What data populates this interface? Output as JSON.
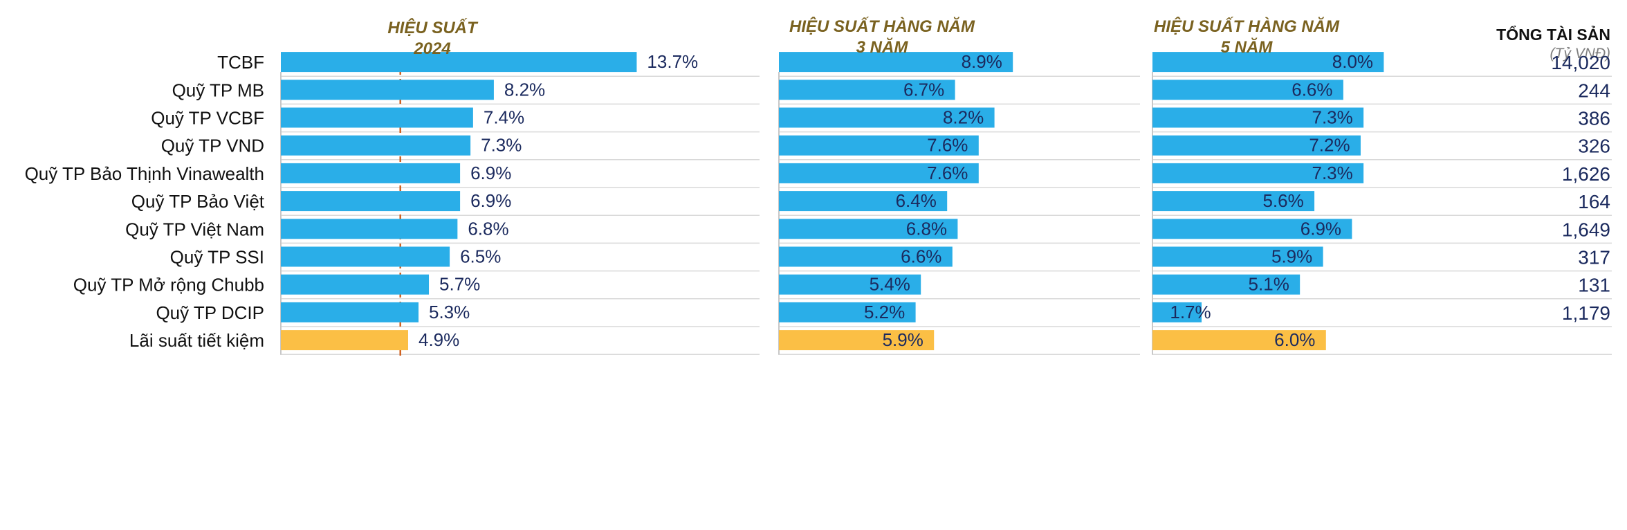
{
  "colors": {
    "bar": "#2aaee8",
    "bar_highlight": "#fbbf45",
    "header_text": "#7a6220",
    "value_text": "#1b2a5e",
    "aum_header": "#111111",
    "aum_sub": "#7f7f7f",
    "row_line": "#d9d9d9",
    "axis_line": "#c8c8c8",
    "reference_line": "#d0611f"
  },
  "headers": {
    "col1": [
      "HIỆU SUẤT",
      "2024"
    ],
    "col2": [
      "HIỆU SUẤT HÀNG NĂM",
      "3 NĂM"
    ],
    "col3": [
      "HIỆU SUẤT HÀNG NĂM",
      "5 NĂM"
    ],
    "col4_title": "TỔNG TÀI SẢN",
    "col4_unit": "(Tỷ VNĐ)"
  },
  "chart_data": [
    {
      "type": "bar",
      "orientation": "horizontal",
      "title": "HIỆU SUẤT 2024",
      "categories": [
        "TCBF",
        "Quỹ TP MB",
        "Quỹ TP VCBF",
        "Quỹ TP VND",
        "Quỹ TP Bảo Thịnh Vinawealth",
        "Quỹ TP Bảo Việt",
        "Quỹ TP Việt Nam",
        "Quỹ TP SSI",
        "Quỹ TP Mở rộng Chubb",
        "Quỹ TP DCIP",
        "Lãi suất tiết kiệm"
      ],
      "values": [
        13.7,
        8.2,
        7.4,
        7.3,
        6.9,
        6.9,
        6.8,
        6.5,
        5.7,
        5.3,
        4.9
      ],
      "labels": [
        "13.7%",
        "8.2%",
        "7.4%",
        "7.3%",
        "6.9%",
        "6.9%",
        "6.8%",
        "6.5%",
        "5.7%",
        "5.3%",
        "4.9%"
      ],
      "reference_line": 4.6,
      "highlight_index": 10
    },
    {
      "type": "bar",
      "orientation": "horizontal",
      "title": "HIỆU SUẤT HÀNG NĂM 3 NĂM",
      "categories": [
        "TCBF",
        "Quỹ TP MB",
        "Quỹ TP VCBF",
        "Quỹ TP VND",
        "Quỹ TP Bảo Thịnh Vinawealth",
        "Quỹ TP Bảo Việt",
        "Quỹ TP Việt Nam",
        "Quỹ TP SSI",
        "Quỹ TP Mở rộng Chubb",
        "Quỹ TP DCIP",
        "Lãi suất tiết kiệm"
      ],
      "values": [
        8.9,
        6.7,
        8.2,
        7.6,
        7.6,
        6.4,
        6.8,
        6.6,
        5.4,
        5.2,
        5.9
      ],
      "labels": [
        "8.9%",
        "6.7%",
        "8.2%",
        "7.6%",
        "7.6%",
        "6.4%",
        "6.8%",
        "6.6%",
        "5.4%",
        "5.2%",
        "5.9%"
      ],
      "highlight_index": 10
    },
    {
      "type": "bar",
      "orientation": "horizontal",
      "title": "HIỆU SUẤT HÀNG NĂM 5 NĂM",
      "categories": [
        "TCBF",
        "Quỹ TP MB",
        "Quỹ TP VCBF",
        "Quỹ TP VND",
        "Quỹ TP Bảo Thịnh Vinawealth",
        "Quỹ TP Bảo Việt",
        "Quỹ TP Việt Nam",
        "Quỹ TP SSI",
        "Quỹ TP Mở rộng Chubb",
        "Quỹ TP DCIP",
        "Lãi suất tiết kiệm"
      ],
      "values": [
        8.0,
        6.6,
        7.3,
        7.2,
        7.3,
        5.6,
        6.9,
        5.9,
        5.1,
        1.7,
        6.0
      ],
      "labels": [
        "8.0%",
        "6.6%",
        "7.3%",
        "7.2%",
        "7.3%",
        "5.6%",
        "6.9%",
        "5.9%",
        "5.1%",
        "1.7%",
        "6.0%"
      ],
      "highlight_index": 10
    },
    {
      "type": "table",
      "title": "TỔNG TÀI SẢN",
      "unit": "(Tỷ VNĐ)",
      "categories": [
        "TCBF",
        "Quỹ TP MB",
        "Quỹ TP VCBF",
        "Quỹ TP VND",
        "Quỹ TP Bảo Thịnh Vinawealth",
        "Quỹ TP Bảo Việt",
        "Quỹ TP Việt Nam",
        "Quỹ TP SSI",
        "Quỹ TP Mở rộng Chubb",
        "Quỹ TP DCIP",
        "Lãi suất tiết kiệm"
      ],
      "values": [
        "14,020",
        "244",
        "386",
        "326",
        "1,626",
        "164",
        "1,649",
        "317",
        "131",
        "1,179",
        ""
      ]
    }
  ]
}
